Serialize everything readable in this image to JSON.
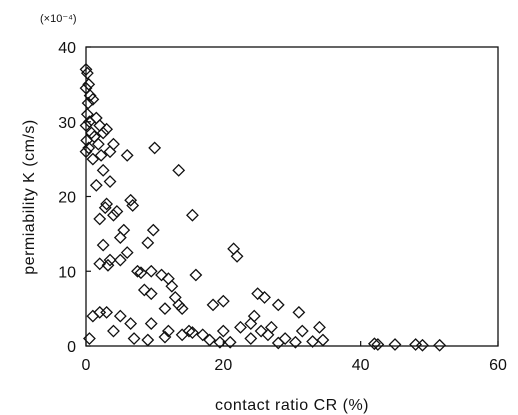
{
  "chart_data": {
    "type": "scatter",
    "title": "",
    "xlabel": "contact ratio CR (%)",
    "ylabel": "permiability K (cm/s)",
    "y_multiplier": "(×10⁻⁴)",
    "xlim": [
      0,
      60
    ],
    "ylim": [
      0,
      40
    ],
    "xticks": [
      "0",
      "20",
      "40",
      "60"
    ],
    "yticks": [
      "0",
      "10",
      "20",
      "30",
      "40"
    ],
    "grid": false,
    "legend": "none",
    "marker": "open-diamond",
    "series": [
      {
        "points": [
          [
            0.0,
            37.0
          ],
          [
            0.2,
            36.5
          ],
          [
            0.4,
            35.0
          ],
          [
            0.0,
            34.5
          ],
          [
            0.6,
            33.5
          ],
          [
            0.3,
            32.5
          ],
          [
            1.0,
            33.0
          ],
          [
            0.2,
            31.0
          ],
          [
            0.5,
            30.0
          ],
          [
            0.0,
            29.5
          ],
          [
            0.8,
            28.5
          ],
          [
            1.2,
            28.0
          ],
          [
            0.1,
            27.5
          ],
          [
            0.4,
            26.5
          ],
          [
            0.0,
            26.0
          ],
          [
            1.5,
            30.5
          ],
          [
            2.0,
            29.5
          ],
          [
            2.5,
            28.5
          ],
          [
            3.0,
            29.0
          ],
          [
            1.8,
            27.0
          ],
          [
            2.2,
            25.5
          ],
          [
            4.0,
            27.0
          ],
          [
            3.5,
            26.0
          ],
          [
            1.0,
            25.0
          ],
          [
            2.5,
            23.5
          ],
          [
            3.5,
            22.0
          ],
          [
            1.5,
            21.5
          ],
          [
            6.0,
            25.5
          ],
          [
            3.0,
            19.0
          ],
          [
            2.8,
            18.5
          ],
          [
            6.5,
            19.5
          ],
          [
            4.5,
            18.0
          ],
          [
            4.0,
            17.5
          ],
          [
            6.8,
            18.8
          ],
          [
            2.0,
            17.0
          ],
          [
            5.5,
            15.5
          ],
          [
            5.0,
            14.5
          ],
          [
            2.5,
            13.5
          ],
          [
            3.5,
            11.5
          ],
          [
            6.0,
            12.5
          ],
          [
            5.0,
            11.5
          ],
          [
            2.0,
            11.0
          ],
          [
            3.2,
            10.8
          ],
          [
            7.5,
            10.0
          ],
          [
            8.0,
            9.8
          ],
          [
            9.5,
            10.0
          ],
          [
            11.0,
            9.5
          ],
          [
            12.0,
            9.0
          ],
          [
            13.5,
            23.5
          ],
          [
            10.0,
            26.5
          ],
          [
            9.8,
            15.5
          ],
          [
            9.0,
            13.8
          ],
          [
            15.5,
            17.5
          ],
          [
            13.0,
            6.5
          ],
          [
            12.5,
            8.0
          ],
          [
            8.5,
            7.5
          ],
          [
            9.5,
            7.0
          ],
          [
            11.5,
            5.0
          ],
          [
            13.5,
            5.5
          ],
          [
            14.0,
            5.0
          ],
          [
            2.0,
            4.5
          ],
          [
            3.0,
            4.5
          ],
          [
            1.0,
            4.0
          ],
          [
            5.0,
            4.0
          ],
          [
            6.5,
            3.0
          ],
          [
            9.5,
            3.0
          ],
          [
            12.0,
            2.0
          ],
          [
            14.0,
            1.5
          ],
          [
            15.0,
            2.0
          ],
          [
            4.0,
            2.0
          ],
          [
            16.0,
            9.5
          ],
          [
            15.5,
            1.8
          ],
          [
            17.0,
            1.5
          ],
          [
            18.5,
            5.5
          ],
          [
            20.0,
            6.0
          ],
          [
            21.5,
            13.0
          ],
          [
            22.0,
            12.0
          ],
          [
            20.0,
            2.0
          ],
          [
            22.5,
            2.5
          ],
          [
            24.5,
            4.0
          ],
          [
            25.0,
            7.0
          ],
          [
            26.0,
            6.5
          ],
          [
            28.0,
            5.5
          ],
          [
            27.0,
            2.5
          ],
          [
            25.5,
            2.0
          ],
          [
            24.0,
            3.0
          ],
          [
            26.5,
            1.5
          ],
          [
            29.0,
            1.0
          ],
          [
            31.0,
            4.5
          ],
          [
            31.5,
            2.0
          ],
          [
            30.5,
            0.5
          ],
          [
            34.0,
            2.5
          ],
          [
            34.5,
            0.8
          ],
          [
            18.0,
            0.8
          ],
          [
            19.5,
            0.5
          ],
          [
            24.0,
            1.0
          ],
          [
            42.0,
            0.3
          ],
          [
            42.5,
            0.2
          ],
          [
            45.0,
            0.2
          ],
          [
            48.0,
            0.2
          ],
          [
            49.0,
            0.1
          ],
          [
            51.5,
            0.1
          ],
          [
            0.5,
            1.0
          ],
          [
            7.0,
            1.0
          ],
          [
            9.0,
            0.8
          ],
          [
            11.5,
            1.2
          ],
          [
            21.0,
            0.5
          ],
          [
            28.0,
            0.4
          ],
          [
            33.0,
            0.6
          ]
        ]
      }
    ]
  }
}
